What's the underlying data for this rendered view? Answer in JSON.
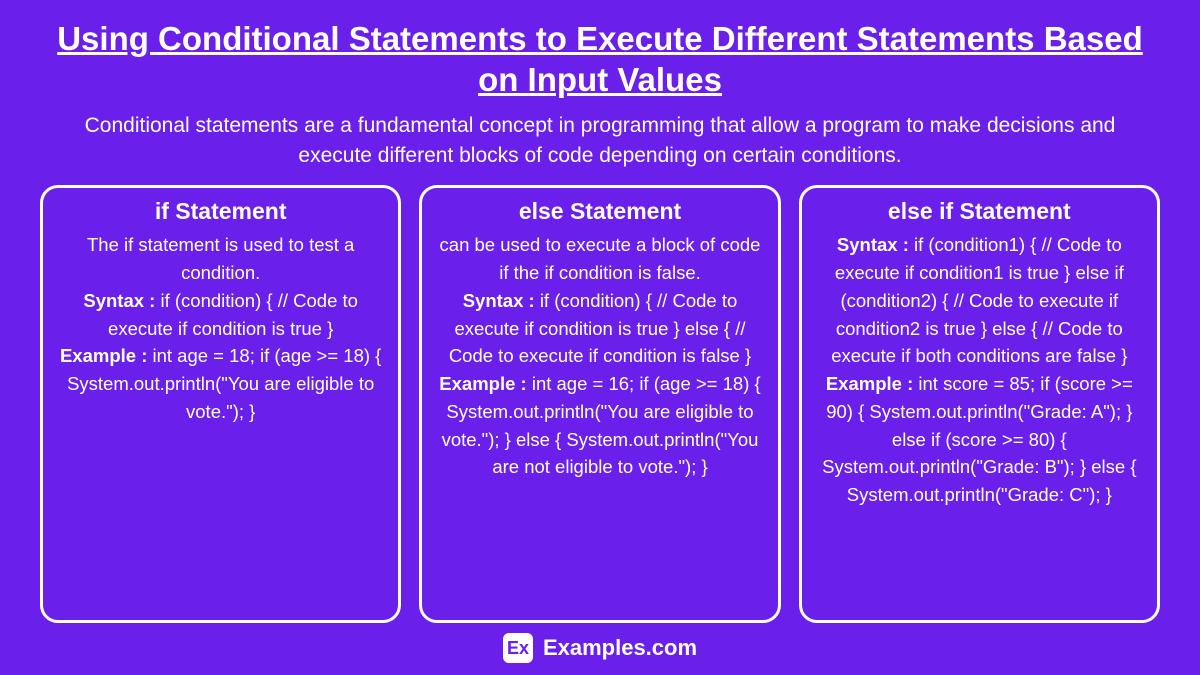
{
  "colors": {
    "background": "#6b1fea",
    "text": "#ffffff",
    "card_border": "#ffffff",
    "logo_bg": "#ffffff",
    "logo_fg": "#6b1fea"
  },
  "title": "Using Conditional Statements to Execute Different Statements Based on Input Values",
  "intro": "Conditional statements are a fundamental concept in programming that allow a program to make decisions and execute different blocks of code depending on certain conditions.",
  "labels": {
    "syntax": "Syntax : ",
    "example": "Example : "
  },
  "cards": [
    {
      "title": "if Statement",
      "desc": "The if statement is used to test a condition.",
      "syntax": "if (condition) { // Code to execute if condition is true\n}",
      "example": "int age = 18; if (age >= 18) {\nSystem.out.println(\"You are eligible to vote.\");\n}"
    },
    {
      "title": "else Statement",
      "desc": "can be used to execute a block of code if the if condition is false.",
      "syntax": "if (condition) { // Code to execute if condition is true } else { // Code to execute if condition is false }",
      "example": "int age = 16; if (age >= 18) { System.out.println(\"You are eligible to vote.\"); } else { System.out.println(\"You are not eligible to vote.\"); }"
    },
    {
      "title": "else if Statement",
      "desc": "",
      "syntax": "if (condition1) { // Code to execute if condition1 is true } else if (condition2) { // Code to execute if condition2 is true } else { // Code to execute if both conditions are false }",
      "example": "int score = 85; if (score >= 90) { System.out.println(\"Grade: A\"); } else if (score >= 80) { System.out.println(\"Grade: B\"); } else { System.out.println(\"Grade: C\"); }"
    }
  ],
  "footer": {
    "logo_text": "Ex",
    "brand": "Examples.com"
  }
}
